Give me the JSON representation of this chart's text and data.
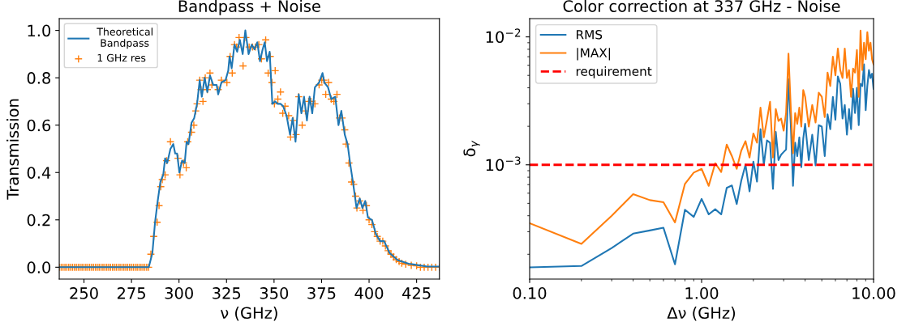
{
  "chart_data": [
    {
      "type": "line",
      "title": "Bandpass + Noise",
      "xlabel": "ν (GHz)",
      "ylabel": "Transmission",
      "xlim": [
        237,
        437
      ],
      "ylim": [
        -0.05,
        1.05
      ],
      "xticks": [
        250,
        275,
        300,
        325,
        350,
        375,
        400,
        425
      ],
      "yticks": [
        {
          "value": 0,
          "label": "0.0"
        },
        {
          "value": 0.2,
          "label": "0.2"
        },
        {
          "value": 0.4,
          "label": "0.4"
        },
        {
          "value": 0.6,
          "label": "0.6"
        },
        {
          "value": 0.8,
          "label": "0.8"
        },
        {
          "value": 1,
          "label": "1.0"
        }
      ],
      "legend": "top left",
      "grid": false,
      "series": [
        {
          "name": "Theoretical\n Bandpass",
          "color": "#1f77b4",
          "x": [
            237,
            284.1,
            286,
            287.4,
            288.8,
            290.2,
            291.7,
            292.7,
            293.8,
            295.5,
            297,
            298,
            299,
            300.2,
            301.6,
            303,
            304,
            305,
            306.6,
            308,
            309.5,
            310.9,
            312,
            313.5,
            314.9,
            316.3,
            318,
            319.8,
            320.6,
            322.3,
            324.5,
            325.9,
            326.6,
            327.7,
            329.2,
            330.6,
            332,
            333.5,
            334.9,
            336.6,
            338.3,
            339.7,
            341.2,
            342.6,
            344,
            345.1,
            346.3,
            347.7,
            349.1,
            350.6,
            352,
            353.4,
            354.8,
            356.6,
            358.4,
            359.8,
            361.3,
            363,
            364.4,
            365.8,
            367.3,
            368.7,
            370.1,
            371.5,
            373.7,
            375.5,
            376.5,
            378.4,
            380.1,
            382.2,
            383.9,
            385.4,
            387.2,
            388.7,
            390,
            391.5,
            393.4,
            395.1,
            396.5,
            398,
            399.4,
            401.5,
            403.6,
            405.8,
            407.9,
            410.8,
            415,
            420.8,
            430.7,
            437
          ],
          "values": [
            0,
            0,
            0.06,
            0.19,
            0.28,
            0.36,
            0.39,
            0.46,
            0.44,
            0.5,
            0.52,
            0.48,
            0.48,
            0.4,
            0.45,
            0.44,
            0.53,
            0.52,
            0.61,
            0.63,
            0.69,
            0.79,
            0.72,
            0.8,
            0.74,
            0.81,
            0.77,
            0.77,
            0.73,
            0.78,
            0.79,
            0.83,
            0.89,
            0.84,
            0.94,
            0.91,
            0.96,
            0.9,
            1.0,
            0.9,
            0.94,
            0.92,
            0.95,
            0.87,
            0.92,
            0.95,
            0.87,
            0.91,
            0.69,
            0.7,
            0.69,
            0.69,
            0.68,
            0.64,
            0.56,
            0.63,
            0.53,
            0.73,
            0.65,
            0.72,
            0.62,
            0.72,
            0.65,
            0.76,
            0.78,
            0.82,
            0.78,
            0.76,
            0.71,
            0.72,
            0.6,
            0.66,
            0.56,
            0.52,
            0.44,
            0.36,
            0.25,
            0.29,
            0.25,
            0.28,
            0.21,
            0.2,
            0.14,
            0.11,
            0.11,
            0.06,
            0.03,
            0.015,
            0.003,
            0.003
          ]
        },
        {
          "name": "1 GHz res",
          "type": "scatter",
          "marker": "cross",
          "color": "#ff7f0e",
          "x": [
            237,
            238,
            239,
            240,
            241,
            242,
            243,
            244,
            245,
            246,
            247,
            248,
            249,
            250,
            251,
            252,
            253,
            254,
            255,
            256,
            257,
            258,
            259,
            260,
            261,
            262,
            263,
            264,
            265,
            266,
            267,
            268,
            269,
            270,
            271,
            272,
            273,
            274,
            275,
            276,
            277,
            278,
            279,
            280,
            281,
            282,
            283,
            284,
            285.2,
            286.7,
            288.5,
            289.5,
            290.4,
            291.2,
            292.7,
            293.5,
            295.5,
            299.5,
            300.5,
            302.4,
            303.8,
            304.6,
            306.6,
            307.8,
            308.8,
            309.5,
            310.9,
            311.6,
            312.6,
            313.8,
            314.9,
            316.3,
            317.3,
            320.6,
            322.3,
            325.2,
            326.9,
            328,
            329.2,
            330.3,
            331.6,
            333.7,
            335.2,
            336.9,
            338.7,
            340.2,
            342,
            343.4,
            345.6,
            346.9,
            348,
            348.9,
            350.2,
            350.6,
            352,
            353.4,
            354.6,
            355.8,
            357.7,
            358.7,
            360.1,
            361.6,
            363,
            364.8,
            366.5,
            368.2,
            369.4,
            371.5,
            373.7,
            375.1,
            376.2,
            377.2,
            378.7,
            380.1,
            381.5,
            383.1,
            384.4,
            385.8,
            387.2,
            387.9,
            389.4,
            390.8,
            391.9,
            392.9,
            393.6,
            395.1,
            396.8,
            398.6,
            400,
            401.5,
            402.9,
            404.3,
            405.8,
            407.2,
            408.6,
            410,
            411.5,
            412.9,
            414.3,
            415.8,
            417.2,
            419.3,
            422.2,
            425,
            427,
            429,
            431,
            433,
            435,
            437
          ],
          "values": [
            0,
            0,
            0,
            0,
            0,
            0,
            0,
            0,
            0,
            0,
            0,
            0,
            0,
            0,
            0,
            0,
            0,
            0,
            0,
            0,
            0,
            0,
            0,
            0,
            0,
            0,
            0,
            0,
            0,
            0,
            0,
            0,
            0,
            0,
            0,
            0,
            0,
            0,
            0,
            0,
            0,
            0,
            0,
            0,
            0,
            0,
            0,
            0,
            0.055,
            0.13,
            0.19,
            0.26,
            0.34,
            0.37,
            0.39,
            0.45,
            0.53,
            0.46,
            0.39,
            0.44,
            0.42,
            0.53,
            0.57,
            0.6,
            0.66,
            0.69,
            0.79,
            0.75,
            0.7,
            0.8,
            0.75,
            0.82,
            0.77,
            0.75,
            0.79,
            0.78,
            0.89,
            0.82,
            0.94,
            0.93,
            0.97,
            0.85,
            0.97,
            0.93,
            0.93,
            0.93,
            0.94,
            0.88,
            0.96,
            0.82,
            0.89,
            0.78,
            0.69,
            0.83,
            0.71,
            0.74,
            0.65,
            0.68,
            0.64,
            0.55,
            0.62,
            0.56,
            0.72,
            0.6,
            0.66,
            0.7,
            0.7,
            0.69,
            0.77,
            0.79,
            0.79,
            0.73,
            0.78,
            0.71,
            0.7,
            0.73,
            0.63,
            0.63,
            0.58,
            0.52,
            0.44,
            0.36,
            0.35,
            0.3,
            0.25,
            0.28,
            0.24,
            0.26,
            0.2,
            0.18,
            0.15,
            0.13,
            0.11,
            0.11,
            0.09,
            0.07,
            0.055,
            0.043,
            0.032,
            0.024,
            0.017,
            0.013,
            0.008,
            0.006,
            0,
            0,
            0,
            0,
            0,
            0
          ]
        }
      ]
    },
    {
      "type": "line",
      "title": "Color correction at 337 GHz - Noise",
      "xlabel": "Δν (GHz)",
      "ylabel": "δ$_{γ}$",
      "log": "xy",
      "xlim": [
        0.1,
        10
      ],
      "ylim": [
        0.000128,
        0.0139
      ],
      "xticks": [
        {
          "value": 0.1,
          "label": "0.10"
        },
        {
          "value": 1,
          "label": "1.00"
        },
        {
          "value": 10,
          "label": "10.00"
        }
      ],
      "yticks": [
        {
          "value": 0.001,
          "label": "10$^{−3}$"
        },
        {
          "value": 0.01,
          "label": "10$^{−2}$"
        }
      ],
      "legend": "top left",
      "grid": false,
      "ref_lines": [
        {
          "axis": "y",
          "value": 0.001,
          "label": "requirement",
          "color": "#ff0000",
          "line_style": "dashed"
        }
      ],
      "series": [
        {
          "name": "RMS",
          "color": "#1f77b4",
          "x": [
            0.1,
            0.2,
            0.3,
            0.4,
            0.5,
            0.6,
            0.7,
            0.8,
            0.9,
            1.0,
            1.1,
            1.2,
            1.3,
            1.4,
            1.5,
            1.6,
            1.7,
            1.8,
            1.9,
            2.0,
            2.1,
            2.2,
            2.3,
            2.4,
            2.5,
            2.6,
            2.7,
            2.8,
            2.9,
            3.0,
            3.1,
            3.2,
            3.3,
            3.4,
            3.5,
            3.6,
            3.7,
            3.8,
            3.9,
            4.0,
            4.2,
            4.4,
            4.6,
            4.8,
            5.0,
            5.2,
            5.4,
            5.6,
            5.8,
            6.0,
            6.2,
            6.4,
            6.6,
            6.8,
            7.0,
            7.2,
            7.4,
            7.6,
            7.8,
            8.0,
            8.2,
            8.4,
            8.6,
            8.8,
            9.0,
            9.2,
            9.4,
            9.6,
            9.8,
            10
          ],
          "values": [
            0.000158,
            0.000162,
            0.000224,
            0.00029,
            0.000307,
            0.000322,
            0.000167,
            0.000446,
            0.000392,
            0.000542,
            0.00041,
            0.00045,
            0.00041,
            0.00066,
            0.00069,
            0.000494,
            0.00075,
            0.001,
            0.00062,
            0.00106,
            0.00074,
            0.0019,
            0.001,
            0.00155,
            0.00149,
            0.00065,
            0.00181,
            0.00109,
            0.0012,
            0.00126,
            0.00132,
            0.00467,
            0.00209,
            0.000685,
            0.00149,
            0.00117,
            0.00164,
            0.00096,
            0.0016,
            0.00209,
            0.00109,
            0.00172,
            0.00099,
            0.00204,
            0.00199,
            0.00117,
            0.00248,
            0.0019,
            0.0034,
            0.00225,
            0.0049,
            0.0043,
            0.0023,
            0.00294,
            0.00172,
            0.00273,
            0.0019,
            0.00393,
            0.00254,
            0.004,
            0.00204,
            0.0043,
            0.00413,
            0.0061,
            0.00267,
            0.00413,
            0.0055,
            0.00477,
            0.00515,
            0.00393
          ]
        },
        {
          "name": "|MAX|",
          "color": "#ff7f0e",
          "x": [
            0.1,
            0.2,
            0.3,
            0.4,
            0.5,
            0.6,
            0.7,
            0.8,
            0.9,
            1.0,
            1.1,
            1.2,
            1.3,
            1.4,
            1.5,
            1.6,
            1.7,
            1.8,
            1.9,
            2.0,
            2.1,
            2.2,
            2.3,
            2.4,
            2.5,
            2.6,
            2.7,
            2.8,
            2.9,
            3.0,
            3.1,
            3.2,
            3.3,
            3.4,
            3.5,
            3.6,
            3.7,
            3.8,
            3.9,
            4.0,
            4.2,
            4.4,
            4.6,
            4.8,
            5.0,
            5.2,
            5.4,
            5.6,
            5.8,
            6.0,
            6.2,
            6.4,
            6.6,
            6.8,
            7.0,
            7.2,
            7.4,
            7.6,
            7.8,
            8.0,
            8.2,
            8.4,
            8.6,
            8.8,
            9.0,
            9.2,
            9.4,
            9.6,
            9.8,
            10
          ],
          "values": [
            0.00035,
            0.000241,
            0.0004,
            0.00059,
            0.00053,
            0.00051,
            0.000355,
            0.00071,
            0.00087,
            0.00093,
            0.000685,
            0.00103,
            0.00088,
            0.00144,
            0.00117,
            0.00093,
            0.00129,
            0.00153,
            0.00114,
            0.00176,
            0.00149,
            0.0028,
            0.00164,
            0.00225,
            0.00311,
            0.00114,
            0.00273,
            0.0022,
            0.0023,
            0.00185,
            0.00254,
            0.0074,
            0.0028,
            0.00123,
            0.00254,
            0.00209,
            0.0028,
            0.00199,
            0.00384,
            0.0034,
            0.00199,
            0.00294,
            0.00214,
            0.00366,
            0.0034,
            0.00236,
            0.00526,
            0.00413,
            0.007,
            0.005,
            0.0081,
            0.0055,
            0.00477,
            0.0081,
            0.00477,
            0.0055,
            0.0034,
            0.00566,
            0.00526,
            0.0079,
            0.0034,
            0.0112,
            0.0055,
            0.009,
            0.0067,
            0.0109,
            0.0078,
            0.009,
            0.0067,
            0.0061
          ]
        }
      ]
    }
  ]
}
